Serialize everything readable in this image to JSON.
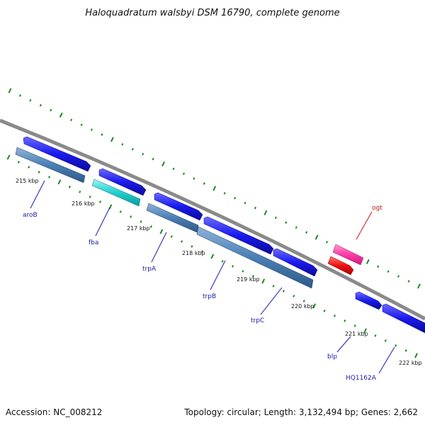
{
  "title": "Haloquadratum walsbyi DSM 16790, complete genome",
  "footer": {
    "accession": "Accession: NC_008212",
    "topology": "Topology: circular; Length: 3,132,494 bp; Genes: 2,662"
  },
  "colors": {
    "backbone": "#8a8a8a",
    "tick": "#1f8a1f",
    "forward_gene": "#1a1aee",
    "reverse_gene": "#4a7fb5",
    "cyan_gene": "#1fd0d0",
    "pink_gene": "#ff3aa8",
    "red_gene": "#ee1111",
    "label_blue": "#1a1aaa",
    "label_red": "#cc1111"
  },
  "scale": {
    "ticks": [
      "215 kbp",
      "216 kbp",
      "217 kbp",
      "218 kbp",
      "219 kbp",
      "220 kbp",
      "221 kbp",
      "222 kbp"
    ]
  },
  "genes": [
    {
      "label": "aroB"
    },
    {
      "label": "fba"
    },
    {
      "label": "trpA"
    },
    {
      "label": "trpB"
    },
    {
      "label": "trpC"
    },
    {
      "label": "blp"
    },
    {
      "label": "HQ1162A"
    },
    {
      "label": "ogt"
    }
  ]
}
